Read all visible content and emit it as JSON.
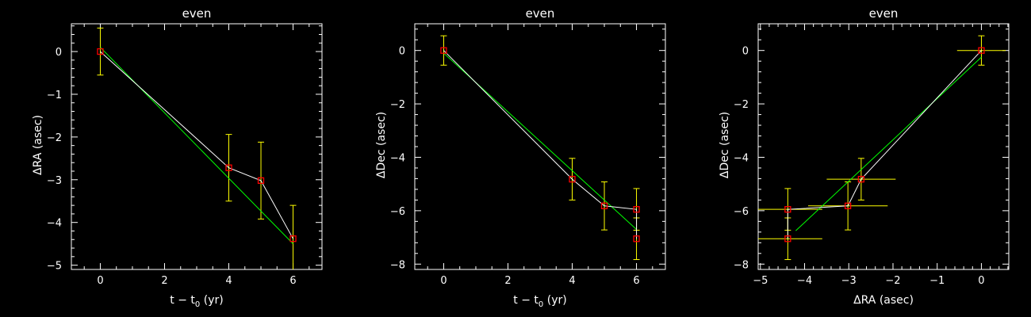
{
  "colors": {
    "background": "#000000",
    "axes": "#ffffff",
    "data_line": "#ffffff",
    "fit_line": "#00ff00",
    "error_bars": "#ffff00",
    "markers": "#ff0000"
  },
  "chart_data": [
    {
      "type": "scatter",
      "title": "even",
      "xlabel": "t − t",
      "xlabel_sub": "0",
      "xlabel_unit": " (yr)",
      "ylabel": "ΔRA (asec)",
      "xlim": [
        -0.9,
        6.9
      ],
      "ylim": [
        -5.1,
        0.65
      ],
      "xticks": [
        0,
        2,
        4,
        6
      ],
      "xtick_labels": [
        "0",
        "2",
        "4",
        "6"
      ],
      "yticks": [
        0,
        -1,
        -2,
        -3,
        -4,
        -5
      ],
      "ytick_labels": [
        "0",
        "−1",
        "−2",
        "−3",
        "−4",
        "−5"
      ],
      "grid": false,
      "points": [
        {
          "x": 0,
          "y": 0,
          "yerr": 0.55
        },
        {
          "x": 4,
          "y": -2.72,
          "yerr": 0.78
        },
        {
          "x": 5,
          "y": -3.02,
          "yerr": 0.9
        },
        {
          "x": 6,
          "y": -4.38,
          "yerr": 0.78
        }
      ],
      "fit_line": [
        [
          0,
          0.1
        ],
        [
          6,
          -4.5
        ]
      ]
    },
    {
      "type": "scatter",
      "title": "even",
      "xlabel": "t − t",
      "xlabel_sub": "0",
      "xlabel_unit": " (yr)",
      "ylabel": "ΔDec (asec)",
      "xlim": [
        -0.9,
        6.9
      ],
      "ylim": [
        -8.2,
        1.0
      ],
      "xticks": [
        0,
        2,
        4,
        6
      ],
      "xtick_labels": [
        "0",
        "2",
        "4",
        "6"
      ],
      "yticks": [
        0,
        -2,
        -4,
        -6,
        -8
      ],
      "ytick_labels": [
        "0",
        "−2",
        "−4",
        "−6",
        "−8"
      ],
      "grid": false,
      "points": [
        {
          "x": 0,
          "y": 0,
          "yerr": 0.55
        },
        {
          "x": 4,
          "y": -4.82,
          "yerr": 0.78
        },
        {
          "x": 5,
          "y": -5.82,
          "yerr": 0.9
        },
        {
          "x": 6,
          "y": -5.95,
          "yerr": 0.78
        },
        {
          "x": 6,
          "y": -7.05,
          "yerr": 0.78
        }
      ],
      "fit_line": [
        [
          0,
          -0.1
        ],
        [
          6,
          -6.7
        ]
      ]
    },
    {
      "type": "scatter",
      "title": "even",
      "xlabel": "ΔRA (asec)",
      "ylabel": "ΔDec (asec)",
      "xlim": [
        -5.05,
        0.62
      ],
      "ylim": [
        -8.2,
        1.0
      ],
      "xticks": [
        -5,
        -4,
        -3,
        -2,
        -1,
        0
      ],
      "xtick_labels": [
        "−5",
        "−4",
        "−3",
        "−2",
        "−1",
        "0"
      ],
      "yticks": [
        0,
        -2,
        -4,
        -6,
        -8
      ],
      "ytick_labels": [
        "0",
        "−2",
        "−4",
        "−6",
        "−8"
      ],
      "grid": false,
      "points": [
        {
          "x": 0,
          "y": 0,
          "xerr": 0.55,
          "yerr": 0.55
        },
        {
          "x": -2.72,
          "y": -4.82,
          "xerr": 0.78,
          "yerr": 0.78
        },
        {
          "x": -3.02,
          "y": -5.82,
          "xerr": 0.9,
          "yerr": 0.9
        },
        {
          "x": -4.38,
          "y": -5.95,
          "xerr": 0.78,
          "yerr": 0.78
        },
        {
          "x": -4.38,
          "y": -7.05,
          "xerr": 0.78,
          "yerr": 0.78
        }
      ],
      "fit_line": [
        [
          -4.2,
          -6.75
        ],
        [
          0,
          -0.25
        ]
      ]
    }
  ]
}
